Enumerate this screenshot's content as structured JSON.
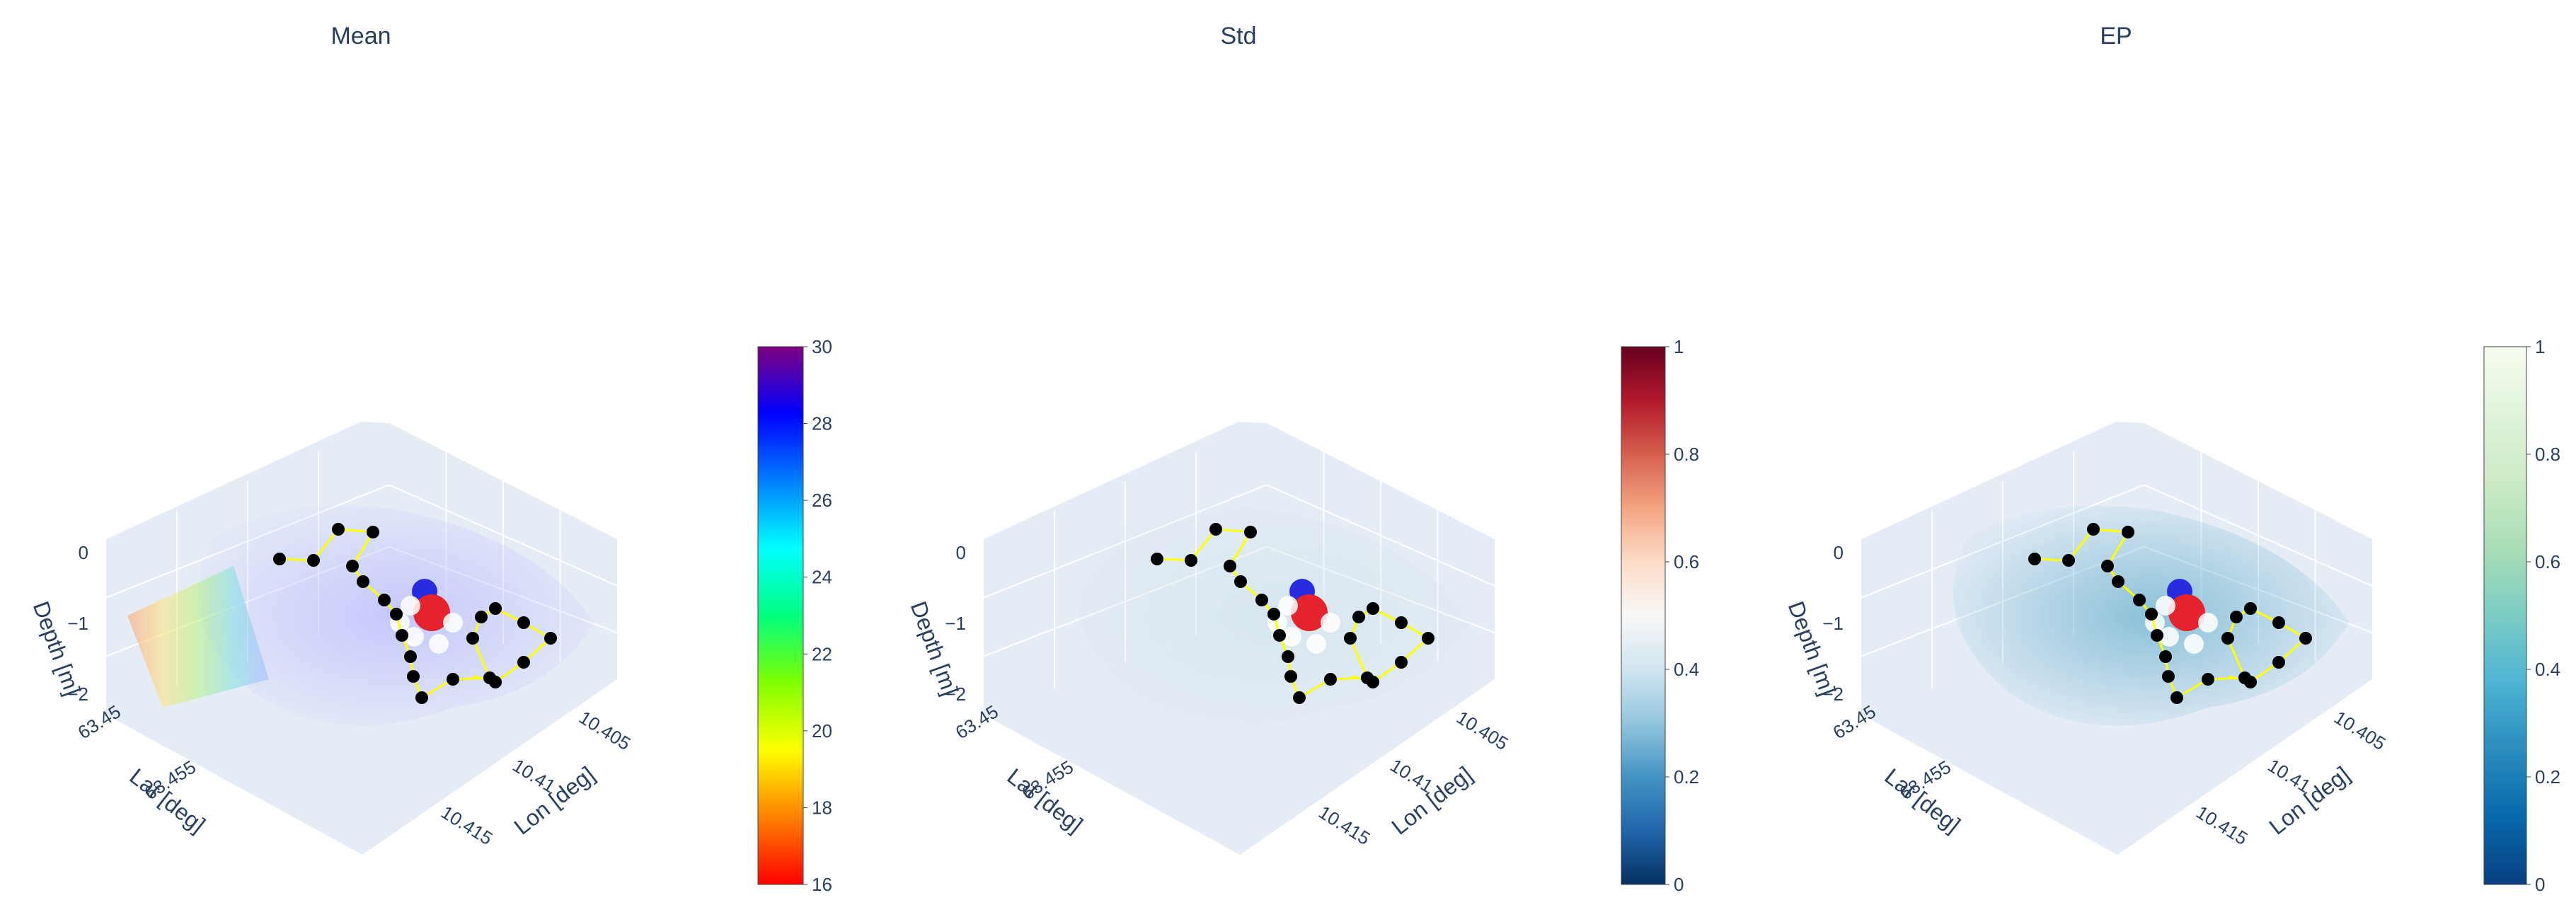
{
  "chart_data": [
    {
      "type": "scatter3d",
      "title": "Mean",
      "xlabel": "Lon [deg]",
      "ylabel": "Lat [deg]",
      "zlabel": "Depth [m]",
      "x_ticks": [
        "10.405",
        "10.41",
        "10.415"
      ],
      "y_ticks": [
        "63.45",
        "63.455"
      ],
      "z_ticks": [
        "0",
        "−1",
        "−2"
      ],
      "colorscale": "rainbow",
      "colorscale_colors": [
        "#ff0000",
        "#ff8000",
        "#ffff00",
        "#80ff00",
        "#00ff80",
        "#00ffff",
        "#0080ff",
        "#0000ff",
        "#800080"
      ],
      "colorbar_range": [
        16,
        30
      ],
      "colorbar_ticks": [
        "16",
        "18",
        "20",
        "22",
        "24",
        "26",
        "28",
        "30"
      ],
      "volume_tint": "#b4b4ff"
    },
    {
      "type": "scatter3d",
      "title": "Std",
      "xlabel": "Lon [deg]",
      "ylabel": "Lat [deg]",
      "zlabel": "Depth [m]",
      "x_ticks": [
        "10.405",
        "10.41",
        "10.415"
      ],
      "y_ticks": [
        "63.45",
        "63.455"
      ],
      "z_ticks": [
        "0",
        "−1",
        "−2"
      ],
      "colorscale": "RdBu_r",
      "colorscale_colors": [
        "#053061",
        "#2166ac",
        "#4393c3",
        "#92c5de",
        "#d1e5f0",
        "#f7f7f7",
        "#fddbc7",
        "#f4a582",
        "#d6604d",
        "#b2182b",
        "#67001f"
      ],
      "colorbar_range": [
        0,
        1
      ],
      "colorbar_ticks": [
        "0",
        "0.2",
        "0.4",
        "0.6",
        "0.8",
        "1"
      ],
      "volume_tint": "#cfe3ea"
    },
    {
      "type": "scatter3d",
      "title": "EP",
      "xlabel": "Lon [deg]",
      "ylabel": "Lat [deg]",
      "zlabel": "Depth [m]",
      "x_ticks": [
        "10.405",
        "10.41",
        "10.415"
      ],
      "y_ticks": [
        "63.45",
        "63.455"
      ],
      "z_ticks": [
        "0",
        "−1",
        "−2"
      ],
      "colorscale": "GnBu_r",
      "colorscale_colors": [
        "#084081",
        "#0868ac",
        "#2b8cbe",
        "#4eb3d3",
        "#7bccc4",
        "#a8ddb5",
        "#ccebc5",
        "#e0f3db",
        "#f7fcf0"
      ],
      "colorbar_range": [
        0,
        1
      ],
      "colorbar_ticks": [
        "0",
        "0.2",
        "0.4",
        "0.6",
        "0.8",
        "1"
      ],
      "volume_tint": "#5aa9c8"
    }
  ],
  "path_style": {
    "line_color": "#ffff00",
    "waypoint_color": "#000000"
  }
}
